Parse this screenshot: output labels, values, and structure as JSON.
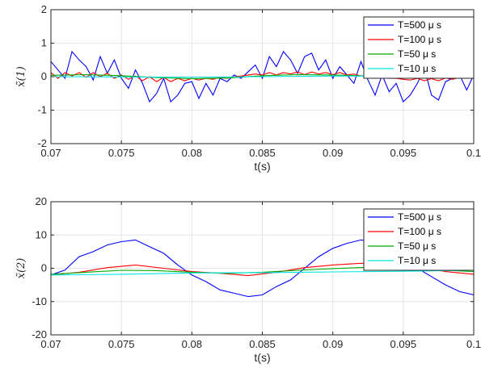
{
  "chart_data": [
    {
      "type": "line",
      "xlabel": "t(s)",
      "ylabel": "x̃(1)",
      "xlim": [
        0.07,
        0.1
      ],
      "ylim": [
        -2,
        2
      ],
      "xticks": [
        0.07,
        0.075,
        0.08,
        0.085,
        0.09,
        0.095,
        0.1
      ],
      "xtick_labels": [
        "0.07",
        "0.075",
        "0.08",
        "0.085",
        "0.09",
        "0.095",
        "0.1"
      ],
      "yticks": [
        -2,
        -1,
        0,
        1,
        2
      ],
      "ytick_labels": [
        "-2",
        "-1",
        "0",
        "1",
        "2"
      ],
      "grid": true,
      "legend_position": "top-right",
      "series": [
        {
          "name": "T=500 μ s",
          "color": "#0000ff",
          "x": [
            0.07,
            0.0705,
            0.071,
            0.0715,
            0.072,
            0.0725,
            0.073,
            0.0735,
            0.074,
            0.0745,
            0.075,
            0.0755,
            0.076,
            0.0765,
            0.077,
            0.0775,
            0.078,
            0.0785,
            0.079,
            0.0795,
            0.08,
            0.0805,
            0.081,
            0.0815,
            0.082,
            0.0825,
            0.083,
            0.0835,
            0.084,
            0.0845,
            0.085,
            0.0855,
            0.086,
            0.0865,
            0.087,
            0.0875,
            0.088,
            0.0885,
            0.089,
            0.0895,
            0.09,
            0.0905,
            0.091,
            0.0915,
            0.092,
            0.0925,
            0.093,
            0.0935,
            0.094,
            0.0945,
            0.095,
            0.0955,
            0.096,
            0.0965,
            0.097,
            0.0975,
            0.098,
            0.0985,
            0.099,
            0.0995,
            0.1
          ],
          "y": [
            0.45,
            0.2,
            -0.05,
            0.75,
            0.5,
            0.3,
            -0.1,
            0.6,
            0.1,
            0.5,
            -0.05,
            -0.35,
            0.2,
            -0.2,
            -0.75,
            -0.5,
            -0.05,
            -0.75,
            -0.55,
            -0.2,
            -0.15,
            -0.65,
            -0.2,
            -0.55,
            -0.05,
            -0.15,
            0.05,
            -0.05,
            0.15,
            0.35,
            -0.05,
            0.6,
            0.3,
            0.75,
            0.5,
            0.1,
            0.6,
            0.7,
            0.2,
            0.5,
            -0.05,
            0.3,
            0.05,
            -0.2,
            0.45,
            -0.1,
            -0.55,
            0.05,
            -0.45,
            -0.2,
            -0.75,
            -0.55,
            -0.2,
            0.25,
            -0.55,
            -0.7,
            -0.15,
            -0.05,
            0.05,
            -0.4,
            0.05
          ]
        },
        {
          "name": "T=100 μ s",
          "color": "#ff0000",
          "x": [
            0.07,
            0.0705,
            0.071,
            0.0715,
            0.072,
            0.0725,
            0.073,
            0.0735,
            0.074,
            0.0745,
            0.075,
            0.0755,
            0.076,
            0.0765,
            0.077,
            0.0775,
            0.078,
            0.0785,
            0.079,
            0.0795,
            0.08,
            0.0805,
            0.081,
            0.0815,
            0.082,
            0.0825,
            0.083,
            0.0835,
            0.084,
            0.0845,
            0.085,
            0.0855,
            0.086,
            0.0865,
            0.087,
            0.0875,
            0.088,
            0.0885,
            0.089,
            0.0895,
            0.09,
            0.0905,
            0.091,
            0.0915,
            0.092,
            0.0925,
            0.093,
            0.0935,
            0.094,
            0.0945,
            0.095,
            0.0955,
            0.096,
            0.0965,
            0.097,
            0.0975,
            0.098,
            0.0985,
            0.099,
            0.0995,
            0.1
          ],
          "y": [
            0.12,
            -0.05,
            0.12,
            0.02,
            0.12,
            -0.02,
            0.12,
            0.0,
            0.1,
            -0.05,
            0.05,
            -0.08,
            0.02,
            -0.12,
            0.0,
            -0.15,
            -0.02,
            -0.15,
            -0.05,
            -0.12,
            -0.05,
            -0.1,
            -0.05,
            -0.08,
            -0.02,
            -0.05,
            0.0,
            0.02,
            0.05,
            0.08,
            0.05,
            0.12,
            0.05,
            0.12,
            0.08,
            0.14,
            0.06,
            0.14,
            0.08,
            0.12,
            0.06,
            0.12,
            0.05,
            0.08,
            0.02,
            0.04,
            -0.02,
            0.0,
            -0.05,
            -0.05,
            -0.08,
            -0.1,
            -0.05,
            -0.12,
            -0.06,
            -0.12,
            -0.04,
            -0.08,
            -0.02,
            -0.05,
            0.0
          ]
        },
        {
          "name": "T=50 μ s",
          "color": "#00aa00",
          "x": [
            0.07,
            0.0725,
            0.075,
            0.0775,
            0.08,
            0.0825,
            0.085,
            0.0875,
            0.09,
            0.0925,
            0.095,
            0.0975,
            0.1
          ],
          "y": [
            0.04,
            0.06,
            0.03,
            -0.03,
            -0.06,
            -0.04,
            0.03,
            0.06,
            0.05,
            0.02,
            -0.02,
            -0.03,
            0.0
          ]
        },
        {
          "name": "T=10 μ s",
          "color": "#00e5e5",
          "x": [
            0.07,
            0.075,
            0.08,
            0.085,
            0.09,
            0.095,
            0.1
          ],
          "y": [
            0.0,
            -0.01,
            -0.02,
            0.0,
            0.02,
            0.01,
            0.0
          ]
        }
      ]
    },
    {
      "type": "line",
      "xlabel": "t(s)",
      "ylabel": "x̃(2)",
      "xlim": [
        0.07,
        0.1
      ],
      "ylim": [
        -20,
        20
      ],
      "xticks": [
        0.07,
        0.075,
        0.08,
        0.085,
        0.09,
        0.095,
        0.1
      ],
      "xtick_labels": [
        "0.07",
        "0.075",
        "0.08",
        "0.085",
        "0.09",
        "0.095",
        "0.1"
      ],
      "yticks": [
        -20,
        -10,
        0,
        10,
        20
      ],
      "ytick_labels": [
        "-20",
        "-10",
        "0",
        "10",
        "20"
      ],
      "grid": true,
      "legend_position": "top-right",
      "series": [
        {
          "name": "T=500 μ s",
          "color": "#0000ff",
          "x": [
            0.07,
            0.071,
            0.072,
            0.073,
            0.074,
            0.075,
            0.076,
            0.077,
            0.078,
            0.079,
            0.08,
            0.081,
            0.082,
            0.083,
            0.084,
            0.085,
            0.086,
            0.087,
            0.088,
            0.089,
            0.09,
            0.091,
            0.092,
            0.093,
            0.094,
            0.095,
            0.096,
            0.097,
            0.098,
            0.099,
            0.1
          ],
          "y": [
            -2.0,
            -0.5,
            3.5,
            5.0,
            7.0,
            8.0,
            8.5,
            6.5,
            4.5,
            1.0,
            -2.0,
            -4.0,
            -6.5,
            -7.5,
            -8.5,
            -8.0,
            -5.5,
            -3.5,
            0.0,
            3.5,
            6.0,
            7.5,
            8.5,
            8.0,
            5.0,
            2.5,
            0.0,
            -2.5,
            -5.0,
            -7.0,
            -8.0
          ]
        },
        {
          "name": "T=100 μ s",
          "color": "#ff0000",
          "x": [
            0.07,
            0.072,
            0.074,
            0.076,
            0.078,
            0.08,
            0.082,
            0.084,
            0.086,
            0.088,
            0.09,
            0.092,
            0.094,
            0.096,
            0.098,
            0.1
          ],
          "y": [
            -2.0,
            -1.2,
            0.2,
            1.0,
            0.0,
            -1.0,
            -1.5,
            -2.2,
            -1.2,
            0.2,
            1.0,
            1.5,
            1.5,
            0.5,
            -1.0,
            -1.8
          ]
        },
        {
          "name": "T=50 μ s",
          "color": "#00aa00",
          "x": [
            0.07,
            0.0725,
            0.075,
            0.0775,
            0.08,
            0.0825,
            0.085,
            0.0875,
            0.09,
            0.0925,
            0.095,
            0.0975,
            0.1
          ],
          "y": [
            -1.8,
            -1.2,
            -0.6,
            -0.7,
            -1.2,
            -1.5,
            -1.2,
            -0.6,
            -0.1,
            0.3,
            0.2,
            -0.5,
            -1.0
          ]
        },
        {
          "name": "T=10 μ s",
          "color": "#00e5e5",
          "x": [
            0.07,
            0.075,
            0.08,
            0.085,
            0.09,
            0.095,
            0.1
          ],
          "y": [
            -2.0,
            -1.8,
            -1.4,
            -1.3,
            -1.1,
            -0.9,
            -0.6
          ]
        }
      ]
    }
  ]
}
